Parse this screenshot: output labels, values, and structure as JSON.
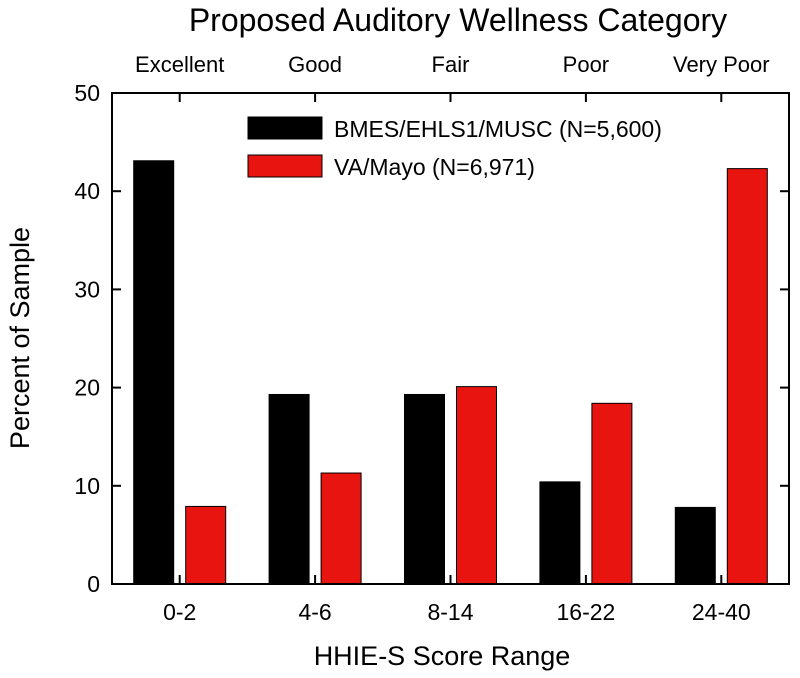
{
  "chart_data": {
    "type": "bar",
    "title": "Proposed Auditory Wellness Category",
    "top_categories": [
      "Excellent",
      "Good",
      "Fair",
      "Poor",
      "Very Poor"
    ],
    "categories": [
      "0-2",
      "4-6",
      "8-14",
      "16-22",
      "24-40"
    ],
    "xlabel": "HHIE-S Score Range",
    "ylabel": "Percent of Sample",
    "ylim": [
      0,
      50
    ],
    "yticks": [
      "0",
      "10",
      "20",
      "30",
      "40",
      "50"
    ],
    "legend_position": "top-right",
    "grid": false,
    "series": [
      {
        "name": "BMES/EHLS1/MUSC (N=5,600)",
        "color": "#000000",
        "values": [
          43.1,
          19.3,
          19.3,
          10.4,
          7.8
        ]
      },
      {
        "name": "VA/Mayo (N=6,971)",
        "color": "#e8140f",
        "values": [
          7.9,
          11.3,
          20.1,
          18.4,
          42.3
        ]
      }
    ]
  }
}
